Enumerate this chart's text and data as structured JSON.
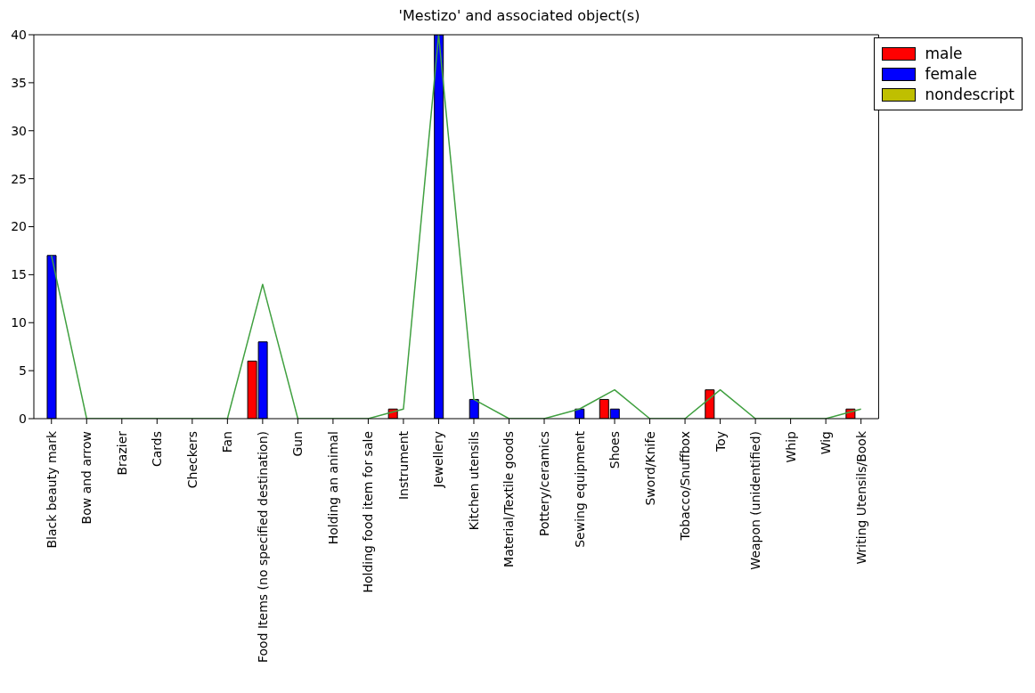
{
  "chart_data": {
    "type": "bar",
    "title": "'Mestizo' and associated object(s)",
    "categories": [
      "Black beauty mark",
      "Bow and arrow",
      "Brazier",
      "Cards",
      "Checkers",
      "Fan",
      "Food Items (no specified destination)",
      "Gun",
      "Holding an animal",
      "Holding food item for sale",
      "Instrument",
      "Jewellery",
      "Kitchen utensils",
      "Material/Textile goods",
      "Pottery/ceramics",
      "Sewing equipment",
      "Shoes",
      "Sword/Knife",
      "Tobacco/Snuffbox",
      "Toy",
      "Weapon (unidentified)",
      "Whip",
      "Wig",
      "Writing Utensils/Book"
    ],
    "series": [
      {
        "name": "male",
        "color": "#ff0000",
        "values": [
          0,
          0,
          0,
          0,
          0,
          0,
          6,
          0,
          0,
          0,
          1,
          0,
          0,
          0,
          0,
          0,
          2,
          0,
          0,
          3,
          0,
          0,
          0,
          1
        ]
      },
      {
        "name": "female",
        "color": "#0000ff",
        "values": [
          17,
          0,
          0,
          0,
          0,
          0,
          8,
          0,
          0,
          0,
          0,
          40,
          2,
          0,
          0,
          1,
          1,
          0,
          0,
          0,
          0,
          0,
          0,
          0
        ]
      },
      {
        "name": "nondescript",
        "color": "#bfbf00",
        "values": [
          0,
          0,
          0,
          0,
          0,
          0,
          0,
          0,
          0,
          0,
          0,
          0,
          0,
          0,
          0,
          0,
          0,
          0,
          0,
          0,
          0,
          0,
          0,
          0
        ]
      },
      {
        "type": "line",
        "color": "#40a040",
        "values": [
          17,
          0,
          0,
          0,
          0,
          0,
          14,
          0,
          0,
          0,
          1,
          40,
          2,
          0,
          0,
          1,
          3,
          0,
          0,
          3,
          0,
          0,
          0,
          1
        ]
      }
    ],
    "ylim": [
      0,
      40
    ],
    "yticks": [
      0,
      5,
      10,
      15,
      20,
      25,
      30,
      35,
      40
    ],
    "grid": false,
    "legend": "top right",
    "marker": "none",
    "line_style": "solid"
  }
}
